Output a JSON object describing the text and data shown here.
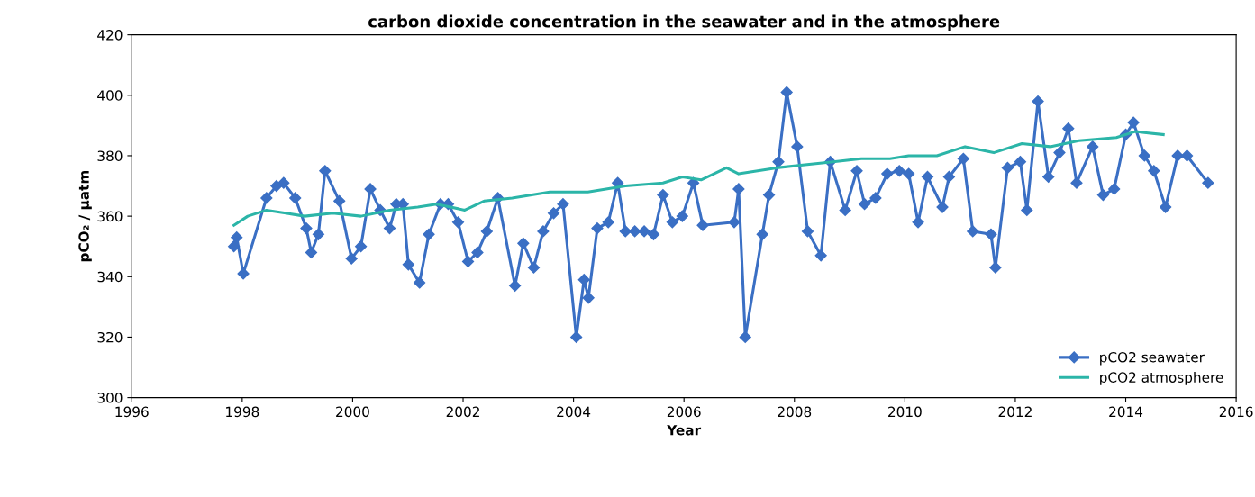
{
  "chart_data": {
    "type": "line",
    "title": "carbon dioxide concentration in the seawater and in the atmosphere",
    "xlabel": "Year",
    "ylabel": "pCO₂ / µatm",
    "xlim": [
      1996,
      2016
    ],
    "xticks": [
      1996,
      1998,
      2000,
      2002,
      2004,
      2006,
      2008,
      2010,
      2012,
      2014,
      2016
    ],
    "ylim": [
      300,
      420
    ],
    "yticks": [
      300,
      320,
      340,
      360,
      380,
      400,
      420
    ],
    "grid": false,
    "legend": "bottom right",
    "series": [
      {
        "name": "pCO2 seawater",
        "color": "#3a6fc4",
        "marker": "diamond",
        "x": [
          1997.85,
          1997.9,
          1998.02,
          1998.44,
          1998.62,
          1998.75,
          1998.96,
          1999.16,
          1999.25,
          1999.38,
          1999.5,
          1999.76,
          1999.98,
          2000.15,
          2000.32,
          2000.5,
          2000.67,
          2000.79,
          2000.91,
          2001.01,
          2001.21,
          2001.38,
          2001.59,
          2001.73,
          2001.91,
          2002.09,
          2002.26,
          2002.43,
          2002.63,
          2002.94,
          2003.09,
          2003.28,
          2003.45,
          2003.64,
          2003.81,
          2004.05,
          2004.19,
          2004.27,
          2004.43,
          2004.63,
          2004.8,
          2004.94,
          2005.11,
          2005.28,
          2005.45,
          2005.62,
          2005.79,
          2005.97,
          2006.17,
          2006.34,
          2006.91,
          2006.99,
          2007.11,
          2007.42,
          2007.54,
          2007.71,
          2007.86,
          2008.05,
          2008.24,
          2008.48,
          2008.65,
          2008.92,
          2009.13,
          2009.27,
          2009.47,
          2009.68,
          2009.9,
          2010.07,
          2010.24,
          2010.41,
          2010.68,
          2010.8,
          2011.06,
          2011.23,
          2011.56,
          2011.64,
          2011.86,
          2012.09,
          2012.21,
          2012.41,
          2012.6,
          2012.8,
          2012.96,
          2013.11,
          2013.4,
          2013.59,
          2013.79,
          2014.0,
          2014.14,
          2014.34,
          2014.51,
          2014.72,
          2014.94,
          2015.11,
          2015.49
        ],
        "values": [
          350,
          353,
          341,
          366,
          370,
          371,
          366,
          356,
          348,
          354,
          375,
          365,
          346,
          350,
          369,
          362,
          356,
          364,
          364,
          344,
          338,
          354,
          364,
          364,
          358,
          345,
          348,
          355,
          366,
          337,
          351,
          343,
          355,
          361,
          364,
          320,
          339,
          333,
          356,
          358,
          371,
          355,
          355,
          355,
          354,
          367,
          358,
          360,
          371,
          357,
          358,
          369,
          320,
          354,
          367,
          378,
          401,
          383,
          355,
          347,
          378,
          362,
          375,
          364,
          366,
          374,
          375,
          374,
          358,
          373,
          363,
          373,
          379,
          355,
          354,
          343,
          376,
          378,
          362,
          398,
          373,
          381,
          389,
          371,
          383,
          367,
          369,
          387,
          391,
          380,
          375,
          363,
          380,
          380,
          371
        ]
      },
      {
        "name": "pCO2 atmosphere",
        "color": "#2bb5a8",
        "marker": "none",
        "x": [
          1997.85,
          1998.1,
          1998.44,
          1998.79,
          1999.13,
          1999.64,
          2000.15,
          2000.67,
          2001.18,
          2001.52,
          2002.03,
          2002.38,
          2002.89,
          2003.57,
          2004.26,
          2004.94,
          2005.62,
          2005.97,
          2006.31,
          2006.77,
          2006.99,
          2007.68,
          2008.19,
          2008.7,
          2009.21,
          2009.73,
          2010.07,
          2010.58,
          2011.09,
          2011.61,
          2012.12,
          2012.63,
          2013.15,
          2013.83,
          2014.17,
          2014.68
        ],
        "values": [
          357,
          360,
          362,
          361,
          360,
          361,
          360,
          362,
          363,
          364,
          362,
          365,
          366,
          368,
          368,
          370,
          371,
          373,
          372,
          376,
          374,
          376,
          377,
          378,
          379,
          379,
          380,
          380,
          383,
          381,
          384,
          383,
          385,
          386,
          388,
          387
        ]
      }
    ]
  }
}
